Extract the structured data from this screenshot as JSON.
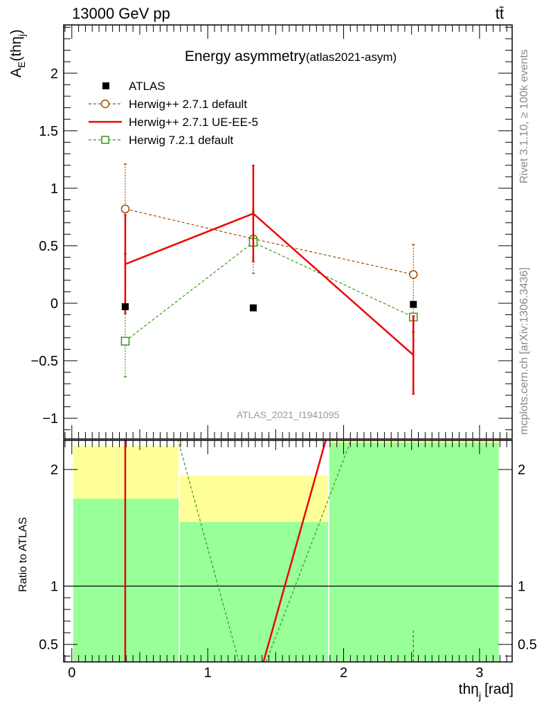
{
  "header": {
    "beam": "13000 GeV pp",
    "process": "tt̄",
    "rivet": "Rivet 3.1.10, ≥ 100k events",
    "site": "mcplots.cern.ch [arXiv:1306.3436]"
  },
  "chart_data": [
    {
      "type": "line",
      "title": "Energy asymmetry",
      "title_suffix": "(atlas2021-asym)",
      "ylabel_main": "A",
      "ylabel_sub": "E",
      "ylabel_paren": "(thη",
      "ylabel_paren_sub": "j",
      "ylabel_close": ")",
      "watermark": "ATLAS_2021_I1941095",
      "xlim": [
        -0.06,
        3.24
      ],
      "ylim": [
        -1.18,
        2.42
      ],
      "yticks": [
        -1,
        -0.5,
        0,
        0.5,
        1,
        1.5,
        2
      ],
      "ytick_labels": [
        "−1",
        "−0.5",
        "0",
        "0.5",
        "1",
        "1.5",
        "2"
      ],
      "bins": [
        [
          0,
          0.785
        ],
        [
          0.785,
          1.885
        ],
        [
          1.885,
          3.1416
        ]
      ],
      "series": [
        {
          "name": "ATLAS",
          "style": "data",
          "color": "#000000",
          "x": [
            0.393,
            1.335,
            2.513
          ],
          "y": [
            -0.03,
            -0.04,
            -0.01
          ],
          "yerr": [
            0.0,
            0.0,
            0.0
          ]
        },
        {
          "name": "Herwig++ 2.7.1 default",
          "style": "dashed-circle",
          "color": "#994c00",
          "x": [
            0.393,
            1.335,
            2.513
          ],
          "y": [
            0.82,
            0.56,
            0.25
          ],
          "yerr": [
            0.39,
            0.0,
            0.26
          ]
        },
        {
          "name": "Herwig++ 2.7.1 UE-EE-5",
          "style": "solid",
          "color": "#ee0000",
          "x": [
            0.393,
            1.335,
            2.513
          ],
          "y": [
            0.34,
            0.78,
            -0.45
          ],
          "yerr": [
            0.43,
            0.42,
            0.34
          ]
        },
        {
          "name": "Herwig 7.2.1 default",
          "style": "dashed-square",
          "color": "#33990d",
          "x": [
            0.393,
            1.335,
            2.513
          ],
          "y": [
            -0.33,
            0.53,
            -0.12
          ],
          "yerr": [
            0.31,
            0.27,
            0.13
          ]
        }
      ]
    },
    {
      "type": "line",
      "ylabel": "Ratio to ATLAS",
      "xlabel": "thη",
      "xlabel_sub": "j",
      "xlabel_unit": "[rad]",
      "xlim": [
        -0.06,
        3.24
      ],
      "ylim": [
        0.35,
        2.25
      ],
      "xticks": [
        0,
        1,
        2,
        3
      ],
      "xtick_labels": [
        "0",
        "1",
        "2",
        "3"
      ],
      "yticks": [
        0.5,
        1,
        2
      ],
      "ytick_labels": [
        "0.5",
        "1",
        "2"
      ],
      "bands": {
        "yellow": [
          [
            0.35,
            2.2
          ],
          [
            0.55,
            1.95
          ],
          [
            0.35,
            2.3
          ]
        ],
        "green": [
          [
            0.35,
            1.75
          ],
          [
            0.35,
            1.55
          ],
          [
            0.35,
            2.23
          ]
        ]
      },
      "series": [
        {
          "name": "Herwig++ 2.7.1 default",
          "color": "#994c00",
          "segments": [
            [
              [
                2.513,
                0.35
              ],
              [
                2.513,
                0.62
              ]
            ]
          ]
        },
        {
          "name": "Herwig++ 2.7.1 UE-EE-5",
          "color": "#ee0000",
          "segments": [
            [
              [
                0.393,
                2.3
              ],
              [
                0.393,
                0.35
              ]
            ],
            [
              [
                1.41,
                0.35
              ],
              [
                1.88,
                2.3
              ]
            ]
          ]
        },
        {
          "name": "Herwig 7.2.1 default",
          "color": "#33990d",
          "segments": [
            [
              [
                0.77,
                2.3
              ],
              [
                1.23,
                0.35
              ]
            ],
            [
              [
                1.43,
                0.35
              ],
              [
                2.07,
                2.3
              ]
            ]
          ]
        }
      ]
    }
  ]
}
